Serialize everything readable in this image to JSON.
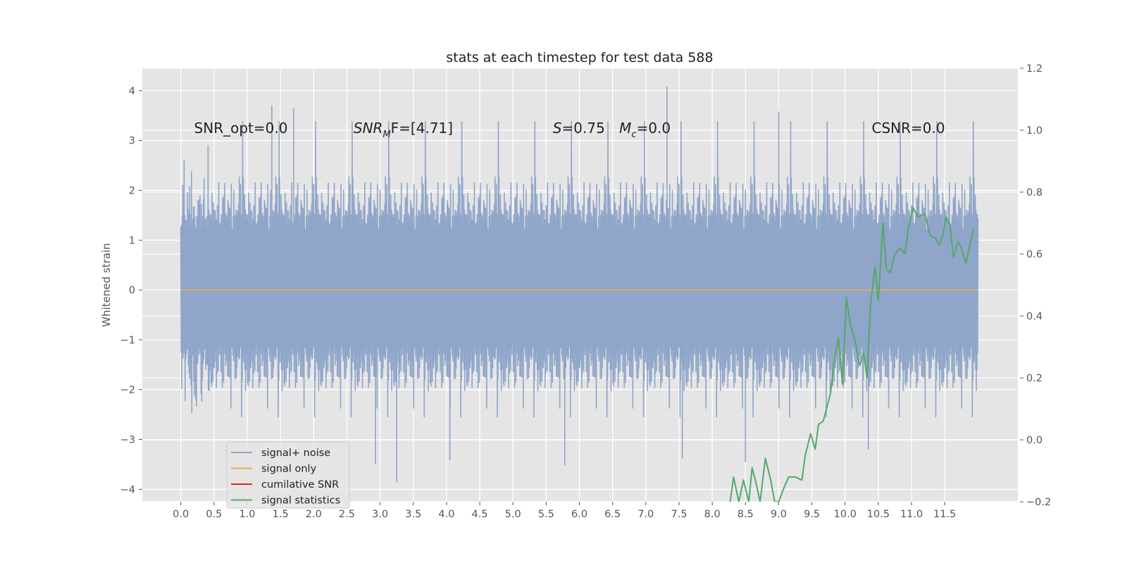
{
  "chart_data": {
    "type": "line",
    "title": "stats at each timestep for test data 588",
    "ylabel": "Whitened strain",
    "xlim": [
      -0.58,
      12.6
    ],
    "ylim": [
      -4.25,
      4.45
    ],
    "y2lim": [
      -0.2,
      1.2
    ],
    "x_ticks": [
      "0.0",
      "0.5",
      "1.0",
      "1.5",
      "2.0",
      "2.5",
      "3.0",
      "3.5",
      "4.0",
      "4.5",
      "5.0",
      "5.5",
      "6.0",
      "6.5",
      "7.0",
      "7.5",
      "8.0",
      "8.5",
      "9.0",
      "9.5",
      "10.0",
      "10.5",
      "11.0",
      "11.5"
    ],
    "y_ticks": [
      "4",
      "3",
      "2",
      "1",
      "0",
      "−1",
      "−2",
      "−3",
      "−4"
    ],
    "y2_ticks": [
      "1.2",
      "1.0",
      "0.8",
      "0.6",
      "0.4",
      "0.2",
      "0.0",
      "−0.2"
    ],
    "grid": true,
    "legend_position": "lower-left",
    "annotations": [
      {
        "text": "SNR_opt=0.0",
        "x": 0.2,
        "y": 3.25
      },
      {
        "prefix": "SNR",
        "sub": "M",
        "suffix": "F=[4.71]",
        "x": 2.6,
        "y": 3.25
      },
      {
        "prefix": "S",
        "suffix": "=0.75",
        "x": 5.6,
        "y": 3.25
      },
      {
        "prefix": "M",
        "sub": "c",
        "suffix": "=0.0",
        "x": 6.6,
        "y": 3.25
      },
      {
        "text": "CSNR=0.0",
        "x": 10.4,
        "y": 3.25
      }
    ],
    "series": [
      {
        "name": "signal+ noise",
        "color": "#8fa5c9",
        "x_range": [
          0.0,
          12.0
        ],
        "envelope": {
          "typical_upper": 2.0,
          "typical_lower": -1.8,
          "max": 4.08,
          "min": -3.85
        },
        "spikes": [
          {
            "x": 1.37,
            "y": 3.7
          },
          {
            "x": 1.7,
            "y": 3.65
          },
          {
            "x": 7.32,
            "y": 4.08
          },
          {
            "x": 9.0,
            "y": 3.58
          },
          {
            "x": 3.25,
            "y": -3.85
          },
          {
            "x": 2.93,
            "y": -3.5
          },
          {
            "x": 4.05,
            "y": -3.42
          },
          {
            "x": 8.5,
            "y": -3.45
          },
          {
            "x": 7.55,
            "y": -3.38
          },
          {
            "x": 5.78,
            "y": -3.52
          },
          {
            "x": 10.35,
            "y": -3.2
          }
        ]
      },
      {
        "name": "signal only",
        "color": "#e8b04d",
        "x": [
          0.0,
          12.0
        ],
        "y": [
          0.0,
          0.0
        ]
      },
      {
        "name": "cumilative SNR",
        "color": "#e0261a",
        "x": [],
        "y": []
      },
      {
        "name": "signal statistics",
        "color": "#55a868",
        "axis": "right",
        "x": [
          8.27,
          8.32,
          8.4,
          8.47,
          8.55,
          8.6,
          8.67,
          8.72,
          8.8,
          8.88,
          8.94,
          9.0,
          9.07,
          9.15,
          9.25,
          9.35,
          9.4,
          9.48,
          9.55,
          9.6,
          9.67,
          9.72,
          9.78,
          9.84,
          9.9,
          9.96,
          10.02,
          10.08,
          10.15,
          10.22,
          10.28,
          10.33,
          10.38,
          10.45,
          10.5,
          10.57,
          10.62,
          10.68,
          10.75,
          10.83,
          10.9,
          10.95,
          11.02,
          11.1,
          11.2,
          11.28,
          11.36,
          11.42,
          11.47,
          11.52,
          11.58,
          11.63,
          11.7,
          11.75,
          11.82,
          11.93
        ],
        "y": [
          -0.2,
          -0.12,
          -0.2,
          -0.13,
          -0.2,
          -0.09,
          -0.15,
          -0.2,
          -0.06,
          -0.13,
          -0.2,
          -0.2,
          -0.16,
          -0.12,
          -0.12,
          -0.13,
          -0.05,
          0.02,
          -0.03,
          0.05,
          0.06,
          0.1,
          0.15,
          0.26,
          0.33,
          0.18,
          0.46,
          0.37,
          0.32,
          0.24,
          0.28,
          0.2,
          0.43,
          0.56,
          0.45,
          0.7,
          0.55,
          0.54,
          0.6,
          0.62,
          0.6,
          0.68,
          0.75,
          0.72,
          0.73,
          0.66,
          0.65,
          0.63,
          0.66,
          0.72,
          0.69,
          0.59,
          0.64,
          0.62,
          0.57,
          0.68
        ]
      }
    ]
  }
}
